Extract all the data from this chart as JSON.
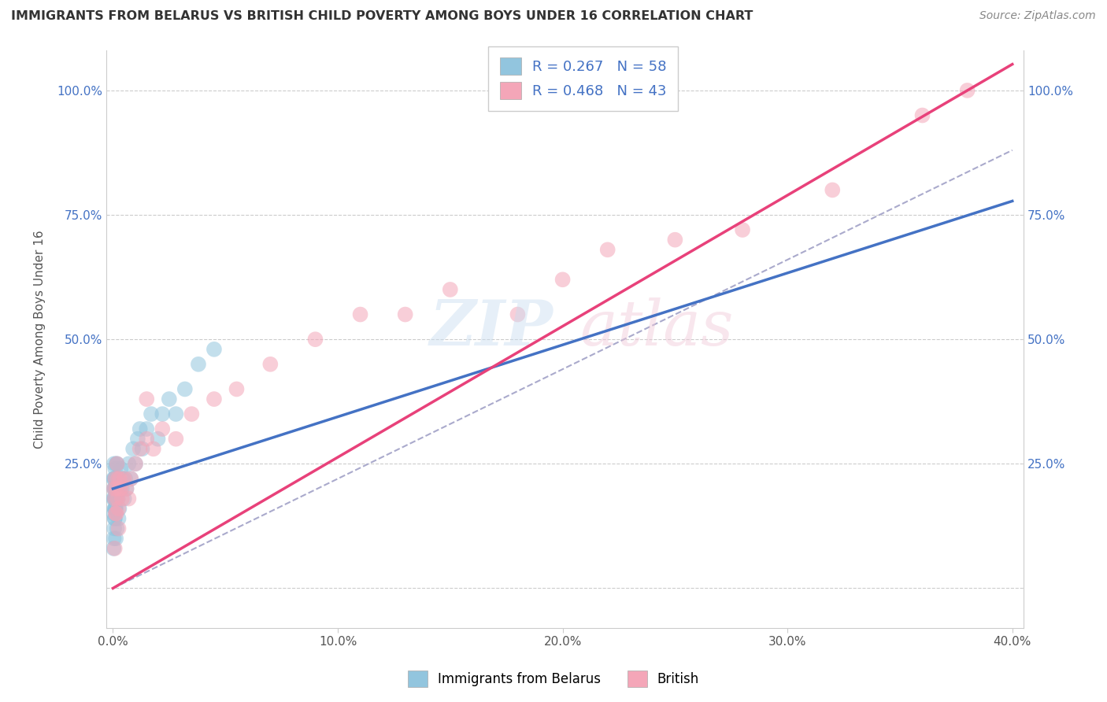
{
  "title": "IMMIGRANTS FROM BELARUS VS BRITISH CHILD POVERTY AMONG BOYS UNDER 16 CORRELATION CHART",
  "source": "Source: ZipAtlas.com",
  "ylabel": "Child Poverty Among Boys Under 16",
  "x_tick_labels": [
    "0.0%",
    "10.0%",
    "20.0%",
    "30.0%",
    "40.0%"
  ],
  "x_tick_vals": [
    0.0,
    10.0,
    20.0,
    30.0,
    40.0
  ],
  "y_tick_labels_left": [
    "",
    "25.0%",
    "50.0%",
    "75.0%",
    "100.0%"
  ],
  "y_tick_vals": [
    0.0,
    25.0,
    50.0,
    75.0,
    100.0
  ],
  "legend_label_blue": "Immigrants from Belarus",
  "legend_label_pink": "British",
  "R_blue": 0.267,
  "N_blue": 58,
  "R_pink": 0.468,
  "N_pink": 43,
  "blue_color": "#92c5de",
  "pink_color": "#f4a6b8",
  "blue_line_color": "#4472c4",
  "pink_line_color": "#e8417a",
  "gray_dash_color": "#aaaacc",
  "blue_scatter_x": [
    0.02,
    0.03,
    0.04,
    0.05,
    0.05,
    0.06,
    0.06,
    0.07,
    0.07,
    0.08,
    0.08,
    0.09,
    0.09,
    0.1,
    0.1,
    0.11,
    0.12,
    0.13,
    0.14,
    0.15,
    0.16,
    0.17,
    0.18,
    0.2,
    0.22,
    0.25,
    0.28,
    0.3,
    0.35,
    0.4,
    0.45,
    0.5,
    0.55,
    0.6,
    0.7,
    0.8,
    0.9,
    1.0,
    1.1,
    1.2,
    1.3,
    1.5,
    1.7,
    2.0,
    2.2,
    2.5,
    2.8,
    3.2,
    3.8,
    4.5,
    0.03,
    0.04,
    0.06,
    0.08,
    0.1,
    0.13,
    0.18,
    0.25
  ],
  "blue_scatter_y": [
    18,
    22,
    15,
    20,
    25,
    18,
    22,
    16,
    20,
    14,
    18,
    22,
    16,
    20,
    24,
    18,
    22,
    16,
    20,
    25,
    18,
    22,
    25,
    20,
    18,
    22,
    16,
    20,
    24,
    20,
    22,
    18,
    22,
    20,
    25,
    22,
    28,
    25,
    30,
    32,
    28,
    32,
    35,
    30,
    35,
    38,
    35,
    40,
    45,
    48,
    8,
    10,
    12,
    14,
    16,
    10,
    12,
    14
  ],
  "pink_scatter_x": [
    0.05,
    0.08,
    0.1,
    0.12,
    0.15,
    0.18,
    0.2,
    0.22,
    0.25,
    0.28,
    0.3,
    0.35,
    0.4,
    0.5,
    0.6,
    0.7,
    0.8,
    1.0,
    1.2,
    1.5,
    1.8,
    2.2,
    2.8,
    3.5,
    4.5,
    5.5,
    7.0,
    9.0,
    11.0,
    13.0,
    15.0,
    18.0,
    20.0,
    22.0,
    25.0,
    28.0,
    32.0,
    36.0,
    38.0,
    0.15,
    0.25,
    0.08,
    1.5
  ],
  "pink_scatter_y": [
    20,
    18,
    22,
    15,
    20,
    25,
    18,
    22,
    16,
    20,
    22,
    20,
    18,
    22,
    20,
    18,
    22,
    25,
    28,
    30,
    28,
    32,
    30,
    35,
    38,
    40,
    45,
    50,
    55,
    55,
    60,
    55,
    62,
    68,
    70,
    72,
    80,
    95,
    100,
    15,
    12,
    8,
    38
  ],
  "xlim": [
    -0.3,
    40.5
  ],
  "ylim": [
    -8,
    108
  ]
}
